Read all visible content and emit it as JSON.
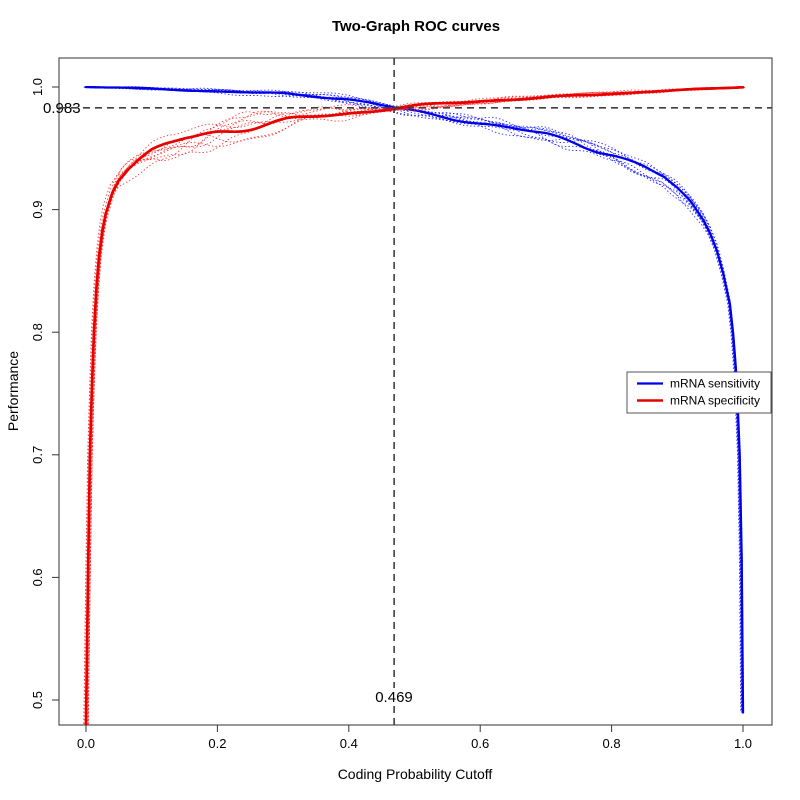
{
  "title": "Two-Graph ROC curves",
  "axes": {
    "x": {
      "label": "Coding Probability Cutoff",
      "ticks": [
        0.0,
        0.2,
        0.4,
        0.6,
        0.8,
        1.0
      ],
      "tick_labels": [
        "0.0",
        "0.2",
        "0.4",
        "0.6",
        "0.8",
        "1.0"
      ]
    },
    "y": {
      "label": "Performance",
      "ticks": [
        0.5,
        0.6,
        0.7,
        0.8,
        0.9,
        1.0
      ],
      "tick_labels": [
        "0.5",
        "0.6",
        "0.7",
        "0.8",
        "0.9",
        "1.0"
      ]
    }
  },
  "annotations": {
    "performance_label": "0.983",
    "performance_value": 0.983,
    "cutoff_label": "0.469",
    "cutoff_value": 0.469
  },
  "legend": {
    "items": [
      {
        "label": "mRNA sensitivity",
        "color": "#0000e6"
      },
      {
        "label": "mRNA specificity",
        "color": "#e60000"
      }
    ]
  },
  "colors": {
    "threshold_line": "#3f3f3f",
    "box": "#444444",
    "background": "#ffffff"
  },
  "chart_data": {
    "type": "line",
    "title": "Two-Graph ROC curves",
    "xlabel": "Coding Probability Cutoff",
    "ylabel": "Performance",
    "xlim": [
      0.0,
      1.0
    ],
    "ylim": [
      0.48,
      1.0
    ],
    "grid": false,
    "legend_position": "right-middle",
    "threshold_lines": {
      "x": 0.469,
      "y": 0.983
    },
    "replicates_per_series": 9,
    "series": [
      {
        "name": "mRNA sensitivity",
        "color": "#0000e6",
        "replicate_color": "#2424ff",
        "style": "solid-with-dotted-replicates",
        "points": [
          [
            0,
            1.0
          ],
          [
            0.05,
            0.9995
          ],
          [
            0.1,
            0.9985
          ],
          [
            0.15,
            0.9975
          ],
          [
            0.2,
            0.9965
          ],
          [
            0.25,
            0.9955
          ],
          [
            0.3,
            0.9945
          ],
          [
            0.35,
            0.9925
          ],
          [
            0.4,
            0.99
          ],
          [
            0.43,
            0.9875
          ],
          [
            0.469,
            0.983
          ],
          [
            0.5,
            0.98
          ],
          [
            0.55,
            0.9755
          ],
          [
            0.6,
            0.9705
          ],
          [
            0.65,
            0.966
          ],
          [
            0.7,
            0.961
          ],
          [
            0.75,
            0.954
          ],
          [
            0.8,
            0.9455
          ],
          [
            0.85,
            0.934
          ],
          [
            0.88,
            0.926
          ],
          [
            0.9,
            0.917
          ],
          [
            0.92,
            0.906
          ],
          [
            0.94,
            0.891
          ],
          [
            0.95,
            0.881
          ],
          [
            0.96,
            0.868
          ],
          [
            0.97,
            0.849
          ],
          [
            0.98,
            0.824
          ],
          [
            0.985,
            0.8
          ],
          [
            0.99,
            0.765
          ],
          [
            0.995,
            0.7
          ],
          [
            0.998,
            0.615
          ],
          [
            1,
            0.49
          ]
        ],
        "band": [
          [
            0,
            0.0005
          ],
          [
            0.1,
            0.0015
          ],
          [
            0.2,
            0.002
          ],
          [
            0.3,
            0.0025
          ],
          [
            0.4,
            0.003
          ],
          [
            0.469,
            0.0035
          ],
          [
            0.55,
            0.005
          ],
          [
            0.65,
            0.0065
          ],
          [
            0.75,
            0.008
          ],
          [
            0.85,
            0.0085
          ],
          [
            0.9,
            0.0075
          ],
          [
            0.94,
            0.006
          ],
          [
            0.97,
            0.004
          ],
          [
            0.99,
            0.002
          ],
          [
            1,
            0.001
          ]
        ]
      },
      {
        "name": "mRNA specificity",
        "color": "#e60000",
        "replicate_color": "#ff3030",
        "style": "solid-with-dotted-replicates",
        "points": [
          [
            0,
            0.48
          ],
          [
            0.003,
            0.6
          ],
          [
            0.006,
            0.7
          ],
          [
            0.009,
            0.755
          ],
          [
            0.012,
            0.8
          ],
          [
            0.016,
            0.838
          ],
          [
            0.02,
            0.864
          ],
          [
            0.025,
            0.885
          ],
          [
            0.03,
            0.899
          ],
          [
            0.04,
            0.9165
          ],
          [
            0.05,
            0.9265
          ],
          [
            0.065,
            0.9345
          ],
          [
            0.08,
            0.94
          ],
          [
            0.1,
            0.9465
          ],
          [
            0.125,
            0.9525
          ],
          [
            0.15,
            0.9575
          ],
          [
            0.2,
            0.9635
          ],
          [
            0.25,
            0.968
          ],
          [
            0.3,
            0.972
          ],
          [
            0.35,
            0.9755
          ],
          [
            0.4,
            0.9785
          ],
          [
            0.469,
            0.983
          ],
          [
            0.5,
            0.9845
          ],
          [
            0.55,
            0.9865
          ],
          [
            0.6,
            0.9885
          ],
          [
            0.65,
            0.99
          ],
          [
            0.7,
            0.9915
          ],
          [
            0.75,
            0.993
          ],
          [
            0.8,
            0.9945
          ],
          [
            0.85,
            0.996
          ],
          [
            0.9,
            0.9975
          ],
          [
            0.95,
            0.9985
          ],
          [
            1,
            1.0
          ]
        ],
        "band": [
          [
            0,
            0.001
          ],
          [
            0.01,
            0.004
          ],
          [
            0.03,
            0.008
          ],
          [
            0.05,
            0.01
          ],
          [
            0.1,
            0.012
          ],
          [
            0.15,
            0.0125
          ],
          [
            0.2,
            0.012
          ],
          [
            0.25,
            0.011
          ],
          [
            0.3,
            0.009
          ],
          [
            0.35,
            0.0075
          ],
          [
            0.4,
            0.006
          ],
          [
            0.469,
            0.004
          ],
          [
            0.55,
            0.003
          ],
          [
            0.65,
            0.0025
          ],
          [
            0.75,
            0.002
          ],
          [
            0.85,
            0.0015
          ],
          [
            1,
            0.001
          ]
        ]
      }
    ]
  }
}
